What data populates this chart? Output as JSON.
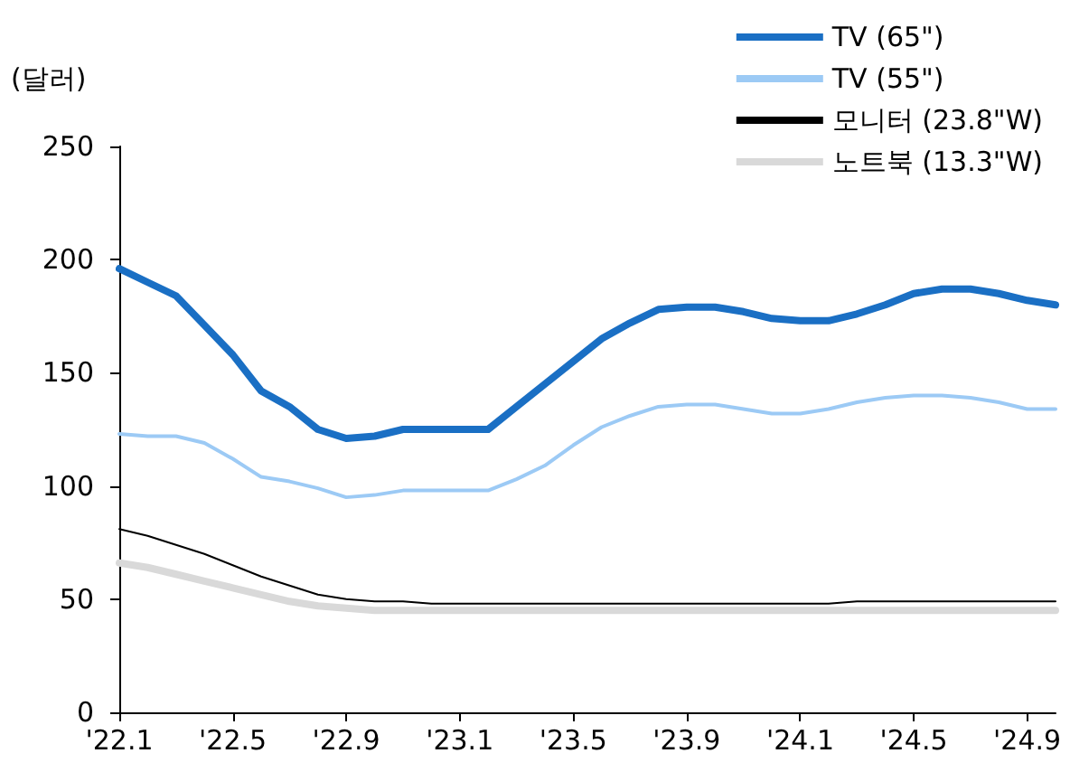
{
  "chart_data": {
    "type": "line",
    "ylabel": "(달러)",
    "categories": [
      "'22.1",
      null,
      null,
      null,
      "'22.5",
      null,
      null,
      null,
      "'22.9",
      null,
      null,
      null,
      "'23.1",
      null,
      null,
      null,
      "'23.5",
      null,
      null,
      null,
      "'23.9",
      null,
      null,
      null,
      "'24.1",
      null,
      null,
      null,
      "'24.5",
      null,
      null,
      null,
      "'24.9",
      null
    ],
    "series": [
      {
        "name": "TV (65\")",
        "color": "#1a6fc4",
        "values": [
          196,
          190,
          184,
          171,
          158,
          142,
          135,
          125,
          121,
          122,
          125,
          125,
          125,
          125,
          135,
          145,
          155,
          165,
          172,
          178,
          179,
          179,
          177,
          174,
          173,
          173,
          176,
          180,
          185,
          187,
          187,
          185,
          182,
          180
        ]
      },
      {
        "name": "TV (55\")",
        "color": "#9ccaf5",
        "values": [
          123,
          122,
          122,
          119,
          112,
          104,
          102,
          99,
          95,
          96,
          98,
          98,
          98,
          98,
          103,
          109,
          118,
          126,
          131,
          135,
          136,
          136,
          134,
          132,
          132,
          134,
          137,
          139,
          140,
          140,
          139,
          137,
          134,
          134
        ]
      },
      {
        "name": "모니터 (23.8\"W)",
        "color": "#000000",
        "values": [
          81,
          78,
          74,
          70,
          65,
          60,
          56,
          52,
          50,
          49,
          49,
          48,
          48,
          48,
          48,
          48,
          48,
          48,
          48,
          48,
          48,
          48,
          48,
          48,
          48,
          48,
          49,
          49,
          49,
          49,
          49,
          49,
          49,
          49
        ]
      },
      {
        "name": "노트북 (13.3\"W)",
        "color": "#d9d9d9",
        "values": [
          66,
          64,
          61,
          58,
          55,
          52,
          49,
          47,
          46,
          45,
          45,
          45,
          45,
          45,
          45,
          45,
          45,
          45,
          45,
          45,
          45,
          45,
          45,
          45,
          45,
          45,
          45,
          45,
          45,
          45,
          45,
          45,
          45,
          45
        ]
      }
    ],
    "ylim": [
      0,
      250
    ],
    "yticks": [
      0,
      50,
      100,
      150,
      200,
      250
    ],
    "grid": false,
    "legend": "top right",
    "marker": "none",
    "line_style": "solid"
  }
}
